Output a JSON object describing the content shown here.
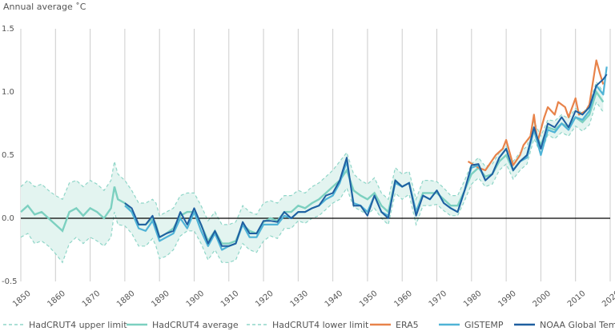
{
  "chart_data": {
    "type": "line",
    "title": "",
    "ylabel": "Annual average ˚C",
    "xlabel": "",
    "xlim": [
      1850,
      2020
    ],
    "ylim": [
      -0.5,
      1.5
    ],
    "x_ticks": [
      1850,
      1860,
      1870,
      1880,
      1890,
      1900,
      1910,
      1920,
      1930,
      1940,
      1950,
      1960,
      1970,
      1980,
      1990,
      2000,
      2010,
      2020
    ],
    "y_ticks": [
      -0.5,
      0.0,
      0.5,
      1.0,
      1.5
    ],
    "y_tick_labels": [
      "-0.5",
      "0.0",
      "0.5",
      "1.0",
      "1.5"
    ],
    "grid": "vertical",
    "legend_position": "bottom",
    "colors": {
      "hadcrut_band": "#8fd6c8",
      "hadcrut_band_fill": "#e3f4f0",
      "hadcrut_avg": "#7cd0c0",
      "era5": "#e8834a",
      "gistemp": "#4fb3d6",
      "noaa": "#1f5fa0",
      "zero_line": "#000000",
      "grid": "#cccccc"
    },
    "legend": [
      {
        "key": "hadcrut_upper",
        "label": "HadCRUT4 upper limit",
        "style": "dashed"
      },
      {
        "key": "hadcrut_avg",
        "label": "HadCRUT4 average",
        "style": "solid"
      },
      {
        "key": "hadcrut_lower",
        "label": "HadCRUT4 lower limit",
        "style": "dashed"
      },
      {
        "key": "era5",
        "label": "ERA5",
        "style": "solid"
      },
      {
        "key": "gistemp",
        "label": "GISTEMP",
        "style": "solid"
      },
      {
        "key": "noaa",
        "label": "NOAA Global Temp",
        "style": "solid"
      }
    ],
    "hadcrut": {
      "x": [
        1850,
        1852,
        1854,
        1856,
        1858,
        1860,
        1862,
        1864,
        1866,
        1868,
        1870,
        1872,
        1874,
        1876,
        1877,
        1878,
        1880,
        1882,
        1884,
        1886,
        1888,
        1889,
        1890,
        1892,
        1894,
        1896,
        1898,
        1900,
        1902,
        1904,
        1906,
        1908,
        1910,
        1912,
        1914,
        1916,
        1918,
        1920,
        1922,
        1924,
        1926,
        1928,
        1930,
        1932,
        1934,
        1936,
        1938,
        1940,
        1942,
        1944,
        1946,
        1948,
        1950,
        1952,
        1954,
        1956,
        1958,
        1960,
        1962,
        1964,
        1966,
        1968,
        1970,
        1972,
        1974,
        1976,
        1978,
        1980,
        1982,
        1984,
        1986,
        1988,
        1990,
        1992,
        1994,
        1996,
        1998,
        2000,
        2002,
        2004,
        2006,
        2008,
        2010,
        2012,
        2014,
        2016,
        2018
      ],
      "avg": [
        0.05,
        0.1,
        0.03,
        0.05,
        0.0,
        -0.05,
        -0.1,
        0.05,
        0.08,
        0.02,
        0.08,
        0.05,
        0.0,
        0.08,
        0.25,
        0.15,
        0.12,
        0.05,
        -0.05,
        -0.05,
        0.0,
        -0.05,
        -0.15,
        -0.12,
        -0.08,
        0.02,
        0.05,
        0.05,
        -0.05,
        -0.18,
        -0.1,
        -0.2,
        -0.2,
        -0.18,
        -0.05,
        -0.1,
        -0.12,
        -0.03,
        0.0,
        -0.02,
        0.05,
        0.05,
        0.1,
        0.08,
        0.12,
        0.15,
        0.2,
        0.25,
        0.3,
        0.38,
        0.22,
        0.18,
        0.15,
        0.2,
        0.1,
        0.05,
        0.3,
        0.25,
        0.28,
        0.05,
        0.2,
        0.2,
        0.2,
        0.15,
        0.1,
        0.1,
        0.22,
        0.35,
        0.4,
        0.33,
        0.35,
        0.45,
        0.5,
        0.38,
        0.45,
        0.5,
        0.7,
        0.58,
        0.72,
        0.7,
        0.75,
        0.72,
        0.8,
        0.76,
        0.82,
        1.0,
        0.92
      ],
      "upper": [
        0.25,
        0.3,
        0.25,
        0.27,
        0.22,
        0.18,
        0.15,
        0.28,
        0.3,
        0.25,
        0.3,
        0.27,
        0.22,
        0.3,
        0.45,
        0.35,
        0.3,
        0.22,
        0.12,
        0.12,
        0.15,
        0.12,
        0.02,
        0.05,
        0.08,
        0.18,
        0.2,
        0.2,
        0.1,
        -0.02,
        0.05,
        -0.05,
        -0.05,
        -0.03,
        0.1,
        0.05,
        0.03,
        0.12,
        0.14,
        0.12,
        0.18,
        0.18,
        0.22,
        0.2,
        0.25,
        0.28,
        0.33,
        0.38,
        0.45,
        0.52,
        0.35,
        0.3,
        0.27,
        0.32,
        0.2,
        0.15,
        0.4,
        0.35,
        0.37,
        0.15,
        0.3,
        0.3,
        0.29,
        0.24,
        0.18,
        0.18,
        0.3,
        0.43,
        0.48,
        0.41,
        0.43,
        0.52,
        0.57,
        0.45,
        0.52,
        0.57,
        0.77,
        0.65,
        0.78,
        0.77,
        0.82,
        0.79,
        0.87,
        0.83,
        0.9,
        1.08,
        1.0
      ],
      "lower": [
        -0.15,
        -0.12,
        -0.2,
        -0.18,
        -0.22,
        -0.28,
        -0.35,
        -0.2,
        -0.15,
        -0.2,
        -0.15,
        -0.18,
        -0.22,
        -0.15,
        0.05,
        -0.05,
        -0.06,
        -0.12,
        -0.22,
        -0.22,
        -0.16,
        -0.22,
        -0.32,
        -0.3,
        -0.25,
        -0.14,
        -0.1,
        -0.1,
        -0.2,
        -0.33,
        -0.25,
        -0.35,
        -0.35,
        -0.33,
        -0.2,
        -0.25,
        -0.27,
        -0.18,
        -0.14,
        -0.16,
        -0.08,
        -0.08,
        -0.02,
        -0.04,
        0.0,
        0.02,
        0.07,
        0.12,
        0.15,
        0.24,
        0.09,
        0.06,
        0.03,
        0.08,
        0.0,
        -0.05,
        0.2,
        0.15,
        0.19,
        -0.05,
        0.1,
        0.1,
        0.11,
        0.06,
        0.02,
        0.02,
        0.14,
        0.27,
        0.32,
        0.25,
        0.27,
        0.38,
        0.43,
        0.31,
        0.38,
        0.43,
        0.63,
        0.51,
        0.66,
        0.63,
        0.68,
        0.65,
        0.73,
        0.69,
        0.74,
        0.92,
        0.84
      ]
    },
    "series": [
      {
        "key": "era5",
        "name": "ERA5",
        "x": [
          1979,
          1982,
          1984,
          1987,
          1989,
          1990,
          1992,
          1994,
          1995,
          1997,
          1998,
          1999,
          2001,
          2002,
          2004,
          2005,
          2007,
          2008,
          2010,
          2011,
          2013,
          2014,
          2016,
          2017,
          2018
        ],
        "values": [
          0.45,
          0.4,
          0.38,
          0.5,
          0.55,
          0.62,
          0.42,
          0.5,
          0.58,
          0.65,
          0.82,
          0.6,
          0.8,
          0.88,
          0.82,
          0.92,
          0.88,
          0.8,
          0.95,
          0.82,
          0.85,
          0.9,
          1.25,
          1.15,
          1.06
        ]
      },
      {
        "key": "gistemp",
        "name": "GISTEMP",
        "x": [
          1880,
          1882,
          1884,
          1886,
          1888,
          1890,
          1892,
          1894,
          1896,
          1898,
          1900,
          1902,
          1904,
          1906,
          1908,
          1910,
          1912,
          1914,
          1916,
          1918,
          1920,
          1922,
          1924,
          1926,
          1928,
          1930,
          1932,
          1934,
          1936,
          1938,
          1940,
          1942,
          1944,
          1946,
          1948,
          1950,
          1952,
          1954,
          1956,
          1958,
          1960,
          1962,
          1964,
          1966,
          1968,
          1970,
          1972,
          1974,
          1976,
          1978,
          1980,
          1982,
          1984,
          1986,
          1988,
          1990,
          1992,
          1994,
          1996,
          1998,
          2000,
          2002,
          2004,
          2006,
          2008,
          2010,
          2012,
          2014,
          2016,
          2018,
          2019
        ],
        "values": [
          0.1,
          0.05,
          -0.08,
          -0.1,
          -0.02,
          -0.18,
          -0.15,
          -0.12,
          0.0,
          -0.08,
          0.05,
          -0.1,
          -0.22,
          -0.12,
          -0.25,
          -0.22,
          -0.2,
          -0.05,
          -0.15,
          -0.15,
          -0.05,
          -0.05,
          -0.05,
          0.02,
          0.0,
          0.05,
          0.05,
          0.08,
          0.1,
          0.15,
          0.18,
          0.28,
          0.45,
          0.12,
          0.1,
          0.05,
          0.18,
          0.05,
          0.02,
          0.28,
          0.25,
          0.28,
          0.05,
          0.18,
          0.15,
          0.22,
          0.12,
          0.08,
          0.05,
          0.22,
          0.4,
          0.42,
          0.3,
          0.35,
          0.48,
          0.55,
          0.38,
          0.45,
          0.48,
          0.7,
          0.5,
          0.7,
          0.68,
          0.75,
          0.7,
          0.8,
          0.78,
          0.85,
          1.05,
          0.98,
          1.2
        ]
      },
      {
        "key": "noaa",
        "name": "NOAA Global Temp",
        "x": [
          1880,
          1882,
          1884,
          1886,
          1888,
          1890,
          1892,
          1894,
          1896,
          1898,
          1900,
          1902,
          1904,
          1906,
          1908,
          1910,
          1912,
          1914,
          1916,
          1918,
          1920,
          1922,
          1924,
          1926,
          1928,
          1930,
          1932,
          1934,
          1936,
          1938,
          1940,
          1942,
          1944,
          1946,
          1948,
          1950,
          1952,
          1954,
          1956,
          1958,
          1960,
          1962,
          1964,
          1966,
          1968,
          1970,
          1972,
          1974,
          1976,
          1978,
          1980,
          1982,
          1984,
          1986,
          1988,
          1990,
          1992,
          1994,
          1996,
          1998,
          2000,
          2002,
          2004,
          2006,
          2008,
          2010,
          2012,
          2014,
          2016,
          2018,
          2019
        ],
        "values": [
          0.12,
          0.08,
          -0.05,
          -0.05,
          0.02,
          -0.15,
          -0.12,
          -0.1,
          0.05,
          -0.05,
          0.08,
          -0.05,
          -0.2,
          -0.1,
          -0.22,
          -0.22,
          -0.2,
          -0.03,
          -0.12,
          -0.12,
          -0.02,
          -0.02,
          -0.03,
          0.05,
          0.0,
          0.05,
          0.05,
          0.08,
          0.1,
          0.18,
          0.2,
          0.3,
          0.48,
          0.1,
          0.1,
          0.02,
          0.18,
          0.05,
          0.0,
          0.3,
          0.25,
          0.28,
          0.02,
          0.18,
          0.15,
          0.22,
          0.12,
          0.08,
          0.05,
          0.22,
          0.42,
          0.43,
          0.3,
          0.35,
          0.48,
          0.55,
          0.38,
          0.45,
          0.5,
          0.72,
          0.55,
          0.75,
          0.72,
          0.8,
          0.72,
          0.85,
          0.82,
          0.88,
          1.05,
          1.1,
          1.14
        ]
      }
    ]
  }
}
